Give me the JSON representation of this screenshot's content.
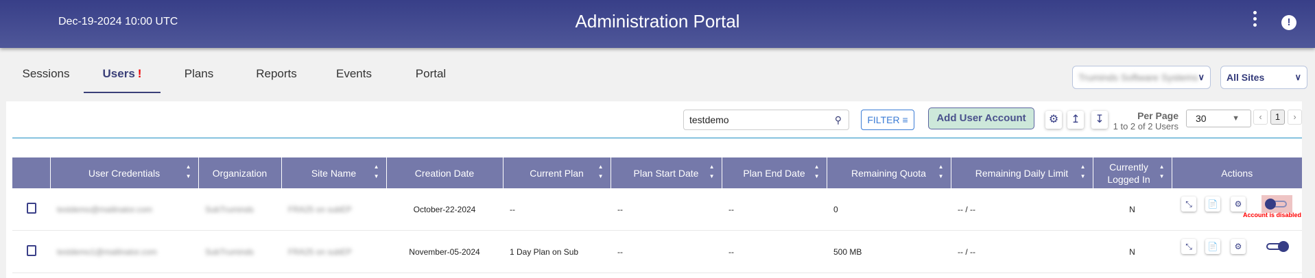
{
  "header": {
    "datetime": "Dec-19-2024 10:00 UTC",
    "title": "Administration Portal",
    "icons": [
      "more-vertical-icon",
      "alert-badge-icon"
    ]
  },
  "tabs": [
    {
      "label": "Sessions"
    },
    {
      "label": "Users",
      "badge": "!",
      "active": true
    },
    {
      "label": "Plans"
    },
    {
      "label": "Reports"
    },
    {
      "label": "Events"
    },
    {
      "label": "Portal"
    }
  ],
  "org_select": {
    "value": "Truminds Software Systems"
  },
  "site_select": {
    "value": "All Sites"
  },
  "toolbar": {
    "search_value": "testdemo",
    "filter_label": "FILTER",
    "add_label": "Add User Account",
    "per_page_label": "Per Page",
    "range_text": "1 to 2 of 2 Users",
    "per_page_value": "30",
    "current_page": "1"
  },
  "table": {
    "columns": [
      "",
      "User Credentials",
      "Organization",
      "Site Name",
      "Creation Date",
      "Current Plan",
      "Plan Start Date",
      "Plan End Date",
      "Remaining Quota",
      "Remaining Daily Limit",
      "Currently Logged In",
      "Actions"
    ],
    "rows": [
      {
        "user": "testdemo@mailinator.com",
        "org": "SubTruminds",
        "site": "FRA25 on subEP",
        "created": "October-22-2024",
        "plan": "--",
        "start": "--",
        "end": "--",
        "quota": "0",
        "daily": "-- / --",
        "logged": "N",
        "enabled": false,
        "status": "Account is disabled"
      },
      {
        "user": "testdemo1@mailinator.com",
        "org": "SubTruminds",
        "site": "FRA25 on subEP",
        "created": "November-05-2024",
        "plan": "1 Day Plan on Sub",
        "start": "--",
        "end": "--",
        "quota": "500 MB",
        "daily": "-- / --",
        "logged": "N",
        "enabled": true
      }
    ]
  },
  "colors": {
    "header": "#3f4690",
    "table_header": "#7579aa",
    "accent": "#363d85",
    "add_button": "#cde8da",
    "error": "#ff0000"
  }
}
